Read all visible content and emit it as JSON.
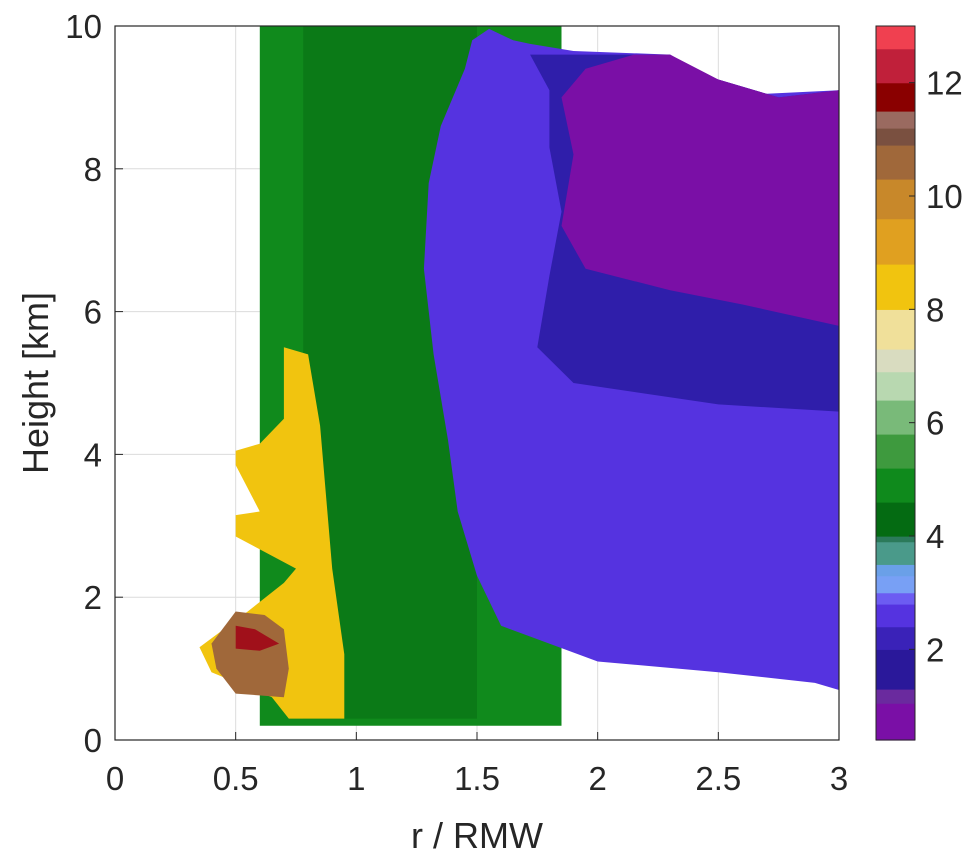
{
  "chart_data": {
    "type": "heatmap",
    "subtype": "filled-contour",
    "title": "",
    "xlabel": "r / RMW",
    "ylabel": "Height [km]",
    "xlim": [
      0,
      3
    ],
    "ylim": [
      0,
      10
    ],
    "x_ticks": [
      0,
      0.5,
      1,
      1.5,
      2,
      2.5,
      3
    ],
    "x_tick_labels": [
      "0",
      "0.5",
      "1",
      "1.5",
      "2",
      "2.5",
      "3"
    ],
    "y_ticks": [
      0,
      2,
      4,
      6,
      8,
      10
    ],
    "y_tick_labels": [
      "0",
      "2",
      "4",
      "6",
      "8",
      "10"
    ],
    "grid": true,
    "colorbar": {
      "range": [
        0.4,
        13
      ],
      "ticks": [
        2,
        4,
        6,
        8,
        10,
        12
      ],
      "tick_labels": [
        "2",
        "4",
        "6",
        "8",
        "10",
        "12"
      ],
      "stops": [
        {
          "v": 0.4,
          "color": "#7a0fa6"
        },
        {
          "v": 1.0,
          "color": "#7a0fa6"
        },
        {
          "v": 1.05,
          "color": "#6a2a9e"
        },
        {
          "v": 1.3,
          "color": "#2a189a"
        },
        {
          "v": 2.0,
          "color": "#3a22b8"
        },
        {
          "v": 2.4,
          "color": "#5533e0"
        },
        {
          "v": 2.8,
          "color": "#6c5cf2"
        },
        {
          "v": 3.0,
          "color": "#78a0f5"
        },
        {
          "v": 3.3,
          "color": "#6aa0e8"
        },
        {
          "v": 3.5,
          "color": "#4a9a8a"
        },
        {
          "v": 3.9,
          "color": "#2b7a5a"
        },
        {
          "v": 4.0,
          "color": "#046b12"
        },
        {
          "v": 4.6,
          "color": "#0f8a1c"
        },
        {
          "v": 5.2,
          "color": "#3e9a3e"
        },
        {
          "v": 5.8,
          "color": "#79ba79"
        },
        {
          "v": 6.4,
          "color": "#b8d8b0"
        },
        {
          "v": 6.9,
          "color": "#d9dcc0"
        },
        {
          "v": 7.3,
          "color": "#f0e09a"
        },
        {
          "v": 8.0,
          "color": "#f1c40f"
        },
        {
          "v": 8.8,
          "color": "#e0a020"
        },
        {
          "v": 9.6,
          "color": "#c8882a"
        },
        {
          "v": 10.3,
          "color": "#a0683a"
        },
        {
          "v": 10.9,
          "color": "#7a5040"
        },
        {
          "v": 11.2,
          "color": "#9a6a60"
        },
        {
          "v": 11.5,
          "color": "#8a0000"
        },
        {
          "v": 12.0,
          "color": "#c0203a"
        },
        {
          "v": 12.6,
          "color": "#f04050"
        },
        {
          "v": 13.0,
          "color": "#ff1010"
        }
      ]
    },
    "regions": [
      {
        "name": "green-band",
        "color": "#108a1c",
        "points": [
          [
            0.55,
            10
          ],
          [
            1.85,
            10
          ],
          [
            1.85,
            0.2
          ],
          [
            0.6,
            0.2
          ],
          [
            0.6,
            10
          ]
        ]
      },
      {
        "name": "green-mid",
        "color": "#0b7a17",
        "points": [
          [
            0.78,
            10
          ],
          [
            1.5,
            10
          ],
          [
            1.5,
            0.3
          ],
          [
            0.78,
            0.3
          ]
        ]
      },
      {
        "name": "blue-region",
        "color": "#5533e0",
        "points": [
          [
            1.55,
            9.96
          ],
          [
            1.65,
            9.8
          ],
          [
            1.72,
            9.75
          ],
          [
            1.9,
            9.65
          ],
          [
            2.3,
            9.6
          ],
          [
            2.45,
            9.3
          ],
          [
            2.7,
            9.05
          ],
          [
            3,
            9.1
          ],
          [
            3,
            0.7
          ],
          [
            2.9,
            0.8
          ],
          [
            2.5,
            0.95
          ],
          [
            2.0,
            1.1
          ],
          [
            1.6,
            1.6
          ],
          [
            1.5,
            2.3
          ],
          [
            1.42,
            3.2
          ],
          [
            1.38,
            4.2
          ],
          [
            1.32,
            5.4
          ],
          [
            1.28,
            6.6
          ],
          [
            1.3,
            7.8
          ],
          [
            1.35,
            8.6
          ],
          [
            1.45,
            9.4
          ],
          [
            1.48,
            9.8
          ]
        ]
      },
      {
        "name": "indigo-region",
        "color": "#2f1eaa",
        "points": [
          [
            1.72,
            9.6
          ],
          [
            2.3,
            9.6
          ],
          [
            2.45,
            9.3
          ],
          [
            2.75,
            9.0
          ],
          [
            3,
            9.1
          ],
          [
            3,
            4.6
          ],
          [
            2.5,
            4.7
          ],
          [
            1.9,
            5.0
          ],
          [
            1.75,
            5.5
          ],
          [
            1.8,
            6.5
          ],
          [
            1.85,
            7.4
          ],
          [
            1.8,
            8.3
          ],
          [
            1.8,
            9.1
          ]
        ]
      },
      {
        "name": "purple-region",
        "color": "#7a0fa6",
        "points": [
          [
            1.95,
            9.4
          ],
          [
            2.15,
            9.6
          ],
          [
            2.3,
            9.6
          ],
          [
            2.5,
            9.25
          ],
          [
            2.75,
            9.0
          ],
          [
            3,
            9.1
          ],
          [
            3,
            5.8
          ],
          [
            2.6,
            6.1
          ],
          [
            2.3,
            6.3
          ],
          [
            1.95,
            6.6
          ],
          [
            1.85,
            7.2
          ],
          [
            1.9,
            8.2
          ],
          [
            1.85,
            9.0
          ]
        ]
      },
      {
        "name": "yellow-region",
        "color": "#f1c40f",
        "points": [
          [
            0.7,
            5.5
          ],
          [
            0.8,
            5.4
          ],
          [
            0.85,
            4.4
          ],
          [
            0.9,
            2.4
          ],
          [
            0.95,
            1.2
          ],
          [
            0.95,
            0.3
          ],
          [
            0.72,
            0.3
          ],
          [
            0.65,
            0.6
          ],
          [
            0.4,
            0.95
          ],
          [
            0.35,
            1.3
          ],
          [
            0.55,
            1.8
          ],
          [
            0.7,
            2.2
          ],
          [
            0.75,
            2.4
          ],
          [
            0.5,
            2.85
          ],
          [
            0.5,
            3.15
          ],
          [
            0.6,
            3.2
          ],
          [
            0.5,
            3.85
          ],
          [
            0.5,
            4.05
          ],
          [
            0.6,
            4.15
          ],
          [
            0.7,
            4.5
          ]
        ]
      },
      {
        "name": "brown-region",
        "color": "#a0683a",
        "points": [
          [
            0.5,
            1.8
          ],
          [
            0.62,
            1.75
          ],
          [
            0.7,
            1.55
          ],
          [
            0.72,
            1.0
          ],
          [
            0.7,
            0.6
          ],
          [
            0.5,
            0.65
          ],
          [
            0.42,
            1.0
          ],
          [
            0.4,
            1.35
          ]
        ]
      },
      {
        "name": "red-core",
        "color": "#a0101a",
        "points": [
          [
            0.5,
            1.6
          ],
          [
            0.58,
            1.55
          ],
          [
            0.68,
            1.35
          ],
          [
            0.6,
            1.25
          ],
          [
            0.5,
            1.28
          ]
        ]
      }
    ]
  }
}
